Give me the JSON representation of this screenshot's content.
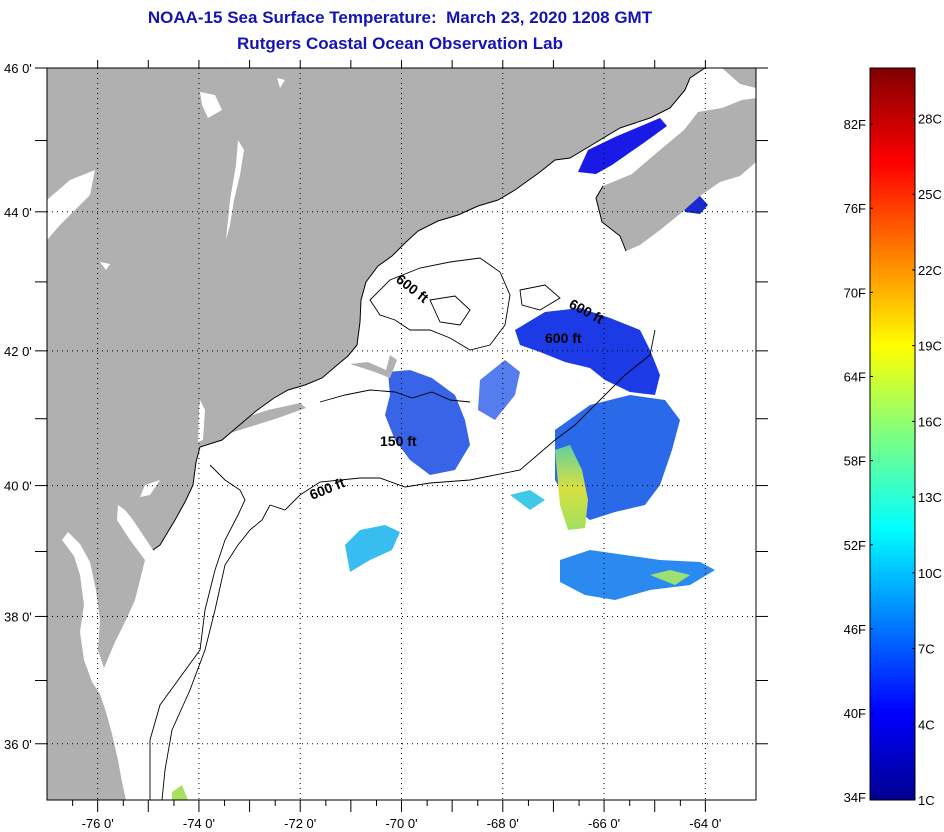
{
  "header": {
    "title_line1": "NOAA-15 Sea Surface Temperature:  March 23, 2020 1208 GMT",
    "title_line2": "Rutgers Coastal Ocean Observation Lab"
  },
  "map": {
    "lon_range": [
      -77,
      -63
    ],
    "lat_range": [
      35.1,
      46
    ],
    "lon_labels": [
      {
        "value": -76,
        "text": "-76 0'"
      },
      {
        "value": -74,
        "text": "-74 0'"
      },
      {
        "value": -72,
        "text": "-72 0'"
      },
      {
        "value": -70,
        "text": "-70 0'"
      },
      {
        "value": -68,
        "text": "-68 0'"
      },
      {
        "value": -66,
        "text": "-66 0'"
      },
      {
        "value": -64,
        "text": "-64 0'"
      }
    ],
    "lat_labels": [
      {
        "value": 46,
        "text": "46 0'"
      },
      {
        "value": 44,
        "text": "44 0'"
      },
      {
        "value": 42,
        "text": "42 0'"
      },
      {
        "value": 40,
        "text": "40 0'"
      },
      {
        "value": 38,
        "text": "38 0'"
      },
      {
        "value": 36,
        "text": "36 0'"
      }
    ],
    "contour_labels": [
      "600 ft",
      "600 ft",
      "600 ft",
      "150 ft",
      "600 ft"
    ],
    "colors": {
      "land": "#b0b0b0",
      "grid": "#000000"
    }
  },
  "colorbar": {
    "range_c": [
      1,
      30
    ],
    "fahrenheit_labels": [
      {
        "value": 34,
        "text": "34F"
      },
      {
        "value": 40,
        "text": "40F"
      },
      {
        "value": 46,
        "text": "46F"
      },
      {
        "value": 52,
        "text": "52F"
      },
      {
        "value": 58,
        "text": "58F"
      },
      {
        "value": 64,
        "text": "64F"
      },
      {
        "value": 70,
        "text": "70F"
      },
      {
        "value": 76,
        "text": "76F"
      },
      {
        "value": 82,
        "text": "82F"
      }
    ],
    "celsius_labels": [
      {
        "value": 1,
        "text": "1C"
      },
      {
        "value": 4,
        "text": "4C"
      },
      {
        "value": 7,
        "text": "7C"
      },
      {
        "value": 10,
        "text": "10C"
      },
      {
        "value": 13,
        "text": "13C"
      },
      {
        "value": 16,
        "text": "16C"
      },
      {
        "value": 19,
        "text": "19C"
      },
      {
        "value": 22,
        "text": "22C"
      },
      {
        "value": 25,
        "text": "25C"
      },
      {
        "value": 28,
        "text": "28C"
      }
    ]
  }
}
